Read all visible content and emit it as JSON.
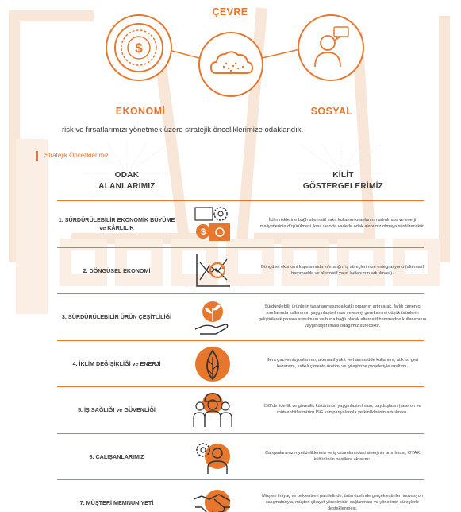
{
  "top": {
    "cevre_label": "ÇEVRE",
    "ekonomi_label": "EKONOMİ",
    "sosyal_label": "SOSYAL"
  },
  "intro_text": "risk ve fırsatlarımızı yönetmek üzere stratejik önceliklerimize odaklandık.",
  "section_label": "Stratejik Önceliklerimiz",
  "headers": {
    "focus_line1": "ODAK",
    "focus_line2": "ALANLARIMIZ",
    "kpi_line1": "KİLİT",
    "kpi_line2": "GÖSTERGELERİMİZ"
  },
  "colors": {
    "accent": "#e8772e",
    "text": "#3a3a3a",
    "watermark": "#f8e6d8"
  },
  "rows": [
    {
      "name": "1. SÜRDÜRÜLEBİLİR EKONOMİK BÜYÜME ve KÂRLILIK",
      "icon": "gears-money-icon",
      "desc": "İklim risklerine bağlı alternatif yakıt kullanım oranlarının artırılması ve enerji maliyetlerinin düşürülmesi, kısa ve orta vadede odak alanımız olmaya sürdürecektir."
    },
    {
      "name": "2. DÖNGÜSEL EKONOMİ",
      "icon": "cycle-chart-icon",
      "desc": "Döngüsel ekonomi kapsamında sıfır atığın iş süreçlerimize entegrasyonu (alternatif hammadde ve alternatif yakıt kullanımın artırılması)."
    },
    {
      "name": "3. SÜRDÜRÜLEBİLİR ÜRÜN ÇEŞİTLİLİĞİ",
      "icon": "plant-hand-icon",
      "desc": "Sürdürülebilir ürünlerin tasarlanmasında katkı oranının artırılarak, farklı çimento sınıflarında kullanımın yaygınlaştırılması ve enerji gereksinimi düşük ürünlerin geliştirilerek pazara sunulması ve buna bağlı olarak alternatif hammadde kullanımının yaygınlaştırılması odağımız sürecektir."
    },
    {
      "name": "4. İKLİM DEĞİŞİKLİĞİ ve ENERJİ",
      "icon": "leaf-icon",
      "desc": "Sera gazı emisyonlarının, alternatif yakıt ve hammadde kullanımı, atık ısı geri kazanımı, katkılı çimento üretimi ve iyileştirme projeleriyle azaltımı."
    },
    {
      "name": "5. İŞ SAĞLIĞI ve GÜVENLİĞİ",
      "icon": "workers-helmet-icon",
      "desc": "İSG'de liderlik ve güvenlik kültürünün yaygınlaştırılması, paydaşların (taşeron ve müteahhitlerimizin) İSG kampanyalarıyla yetkinliklerinin artırılması."
    },
    {
      "name": "6. ÇALIŞANLARIMIZ",
      "icon": "employee-gear-icon",
      "desc": "Çalışanlarımızın yetkinliklerinin ve iş ortamlarındaki sinerjinin artırılması, OYAK kültürünün nesillere aktarımı."
    },
    {
      "name": "7. MÜŞTERİ MEMNUNİYETİ",
      "icon": "handshake-icon",
      "desc": "Müşteri ihtiyaç ve beklentileri paralelinde, ürün özelinde gerçekleştirilen inovasyon çalışmalarıyla, müşteri şikayet yönetiminin sağlanması ve yönetimin süreçlerle desteklenmesi."
    }
  ]
}
